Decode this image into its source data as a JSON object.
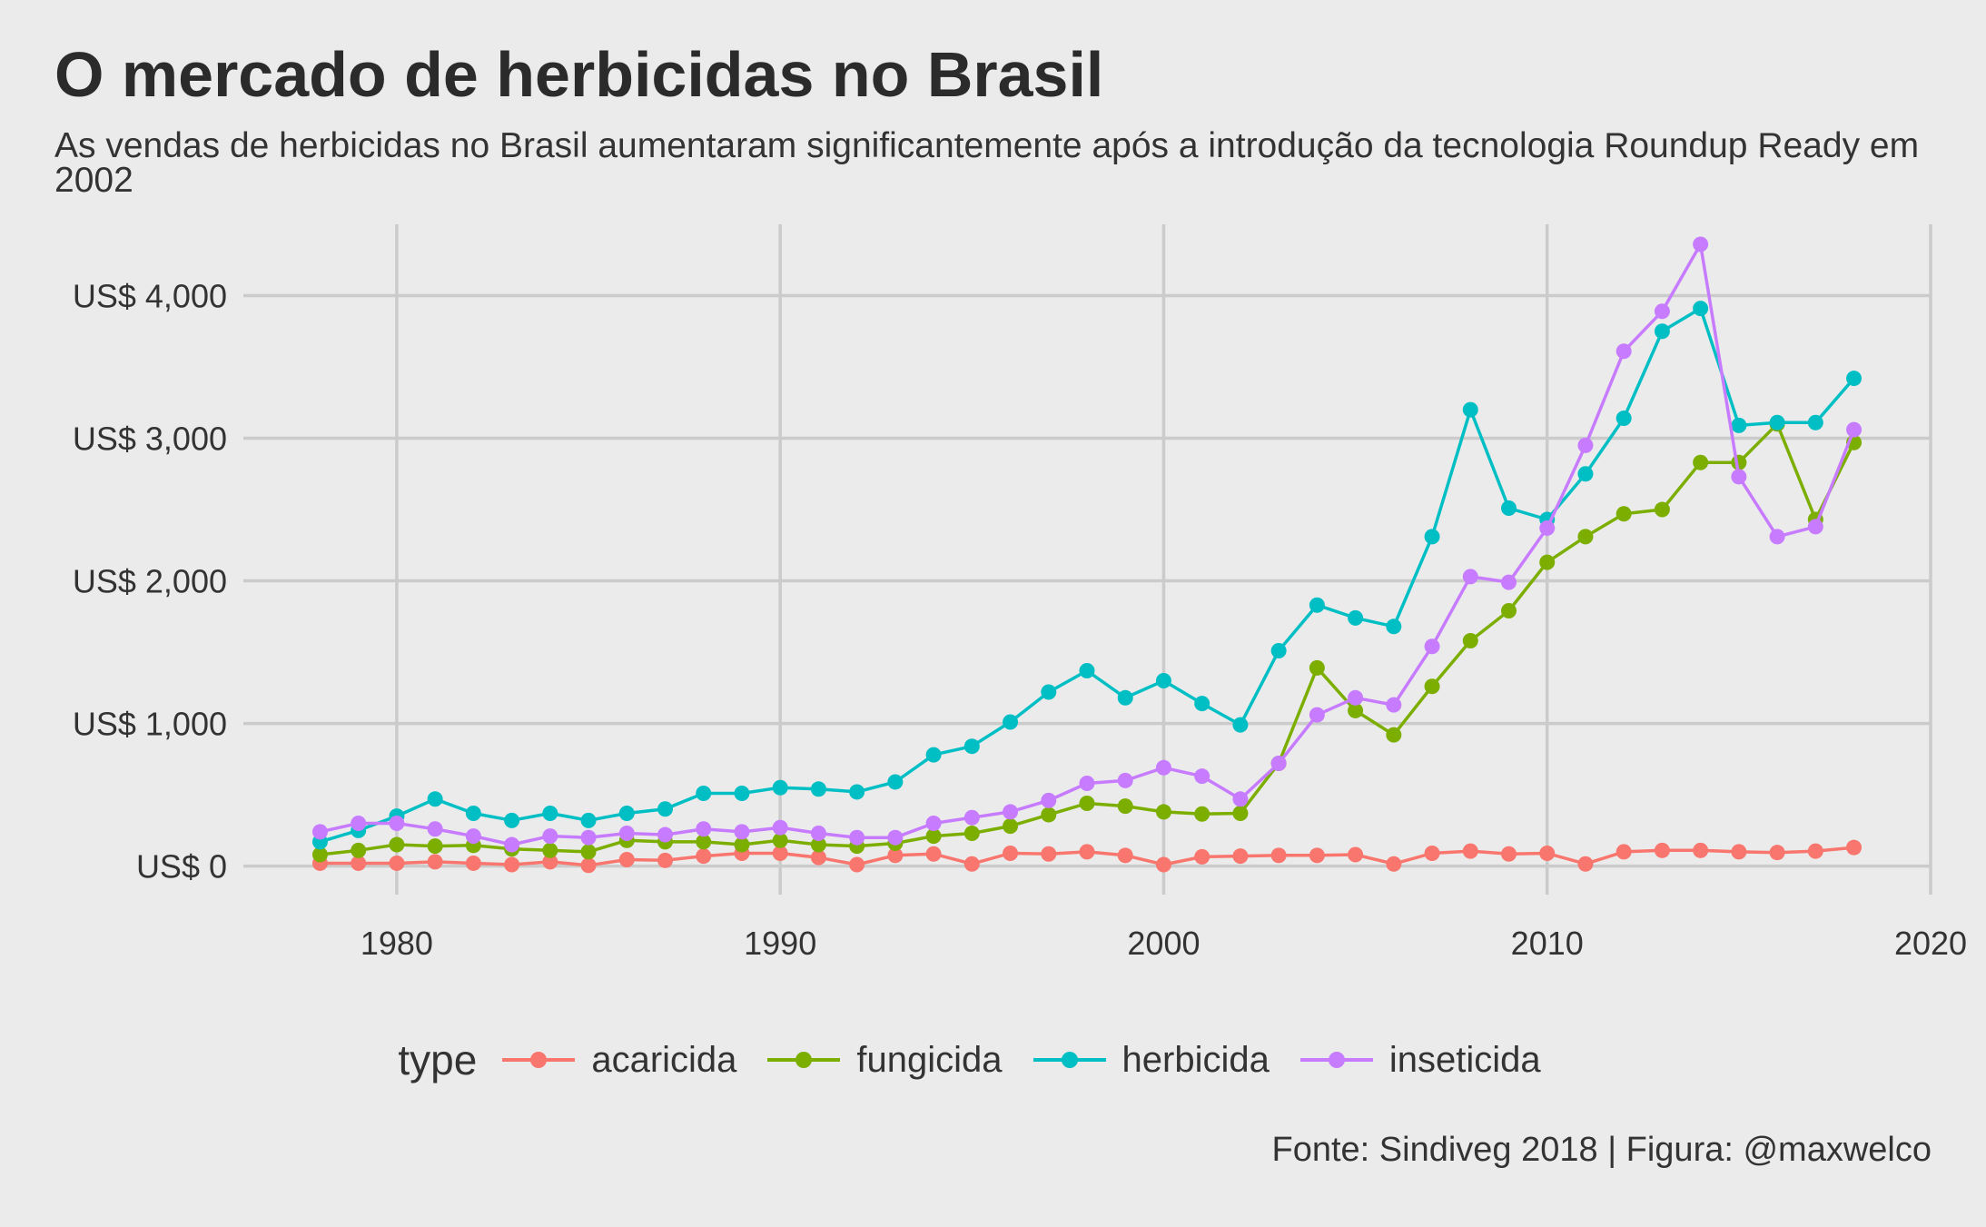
{
  "chart_data": {
    "type": "line",
    "title": "O mercado de herbicidas no Brasil",
    "subtitle": "As vendas de herbicidas no Brasil aumentaram significantemente após a introdução da tecnologia Roundup Ready em 2002",
    "caption": "Fonte: Sindiveg 2018 | Figura: @maxwelco",
    "xlabel": "",
    "ylabel": "",
    "x_ticks": [
      1980,
      1990,
      2000,
      2010,
      2020
    ],
    "y_ticks": [
      0,
      1000,
      2000,
      3000,
      4000
    ],
    "y_tick_labels": [
      "US$ 0",
      "US$ 1,000",
      "US$ 2,000",
      "US$ 3,000",
      "US$ 4,000"
    ],
    "xlim": [
      1976,
      2020
    ],
    "ylim": [
      -200,
      4500
    ],
    "grid": true,
    "legend_title": "type",
    "legend_position": "bottom",
    "x": [
      1978,
      1979,
      1980,
      1981,
      1982,
      1983,
      1984,
      1985,
      1986,
      1987,
      1988,
      1989,
      1990,
      1991,
      1992,
      1993,
      1994,
      1995,
      1996,
      1997,
      1998,
      1999,
      2000,
      2001,
      2002,
      2003,
      2004,
      2005,
      2006,
      2007,
      2008,
      2009,
      2010,
      2011,
      2012,
      2013,
      2014,
      2015,
      2016,
      2017,
      2018
    ],
    "series": [
      {
        "name": "acaricida",
        "color": "#F8766D",
        "values": [
          20,
          20,
          20,
          30,
          20,
          10,
          30,
          5,
          45,
          40,
          70,
          90,
          90,
          60,
          10,
          75,
          85,
          15,
          90,
          85,
          100,
          75,
          10,
          65,
          70,
          75,
          75,
          80,
          15,
          90,
          105,
          85,
          90,
          15,
          100,
          110,
          110,
          100,
          95,
          105,
          130
        ]
      },
      {
        "name": "fungicida",
        "color": "#7CAE00",
        "values": [
          80,
          110,
          150,
          140,
          145,
          120,
          110,
          100,
          180,
          170,
          170,
          150,
          180,
          150,
          140,
          160,
          210,
          230,
          280,
          360,
          440,
          420,
          380,
          365,
          370,
          720,
          1390,
          1090,
          920,
          1260,
          1580,
          1790,
          2130,
          2310,
          2470,
          2500,
          2830,
          2830,
          3100,
          2430,
          2970
        ]
      },
      {
        "name": "herbicida",
        "color": "#00BFC4",
        "values": [
          170,
          250,
          350,
          470,
          370,
          320,
          370,
          320,
          370,
          400,
          510,
          510,
          550,
          540,
          520,
          590,
          780,
          840,
          1010,
          1220,
          1370,
          1180,
          1300,
          1140,
          990,
          1510,
          1830,
          1740,
          1680,
          2310,
          3200,
          2510,
          2430,
          2750,
          3140,
          3750,
          3910,
          3090,
          3110,
          3110,
          3420
        ]
      },
      {
        "name": "inseticida",
        "color": "#C77CFF",
        "values": [
          240,
          300,
          300,
          260,
          210,
          150,
          210,
          200,
          230,
          220,
          260,
          240,
          270,
          230,
          200,
          200,
          300,
          340,
          380,
          460,
          580,
          600,
          690,
          630,
          470,
          720,
          1060,
          1180,
          1130,
          1540,
          2030,
          1990,
          2370,
          2950,
          3610,
          3890,
          4360,
          2730,
          2310,
          2380,
          3060
        ]
      }
    ]
  }
}
